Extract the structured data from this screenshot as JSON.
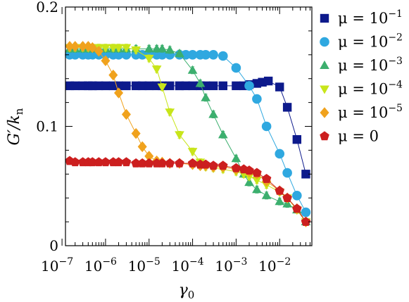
{
  "chart_data": {
    "type": "scatter",
    "title": "",
    "xlabel": "γ0",
    "ylabel": "G′/kn",
    "xscale": "log",
    "xlim": [
      1.2e-07,
      0.055
    ],
    "ylim": [
      0,
      0.2
    ],
    "x_ticks": [
      {
        "value": 1e-07,
        "base": "10",
        "exp": "−7"
      },
      {
        "value": 1e-06,
        "base": "10",
        "exp": "−6"
      },
      {
        "value": 1e-05,
        "base": "10",
        "exp": "−5"
      },
      {
        "value": 0.0001,
        "base": "10",
        "exp": "−4"
      },
      {
        "value": 0.001,
        "base": "10",
        "exp": "−3"
      },
      {
        "value": 0.01,
        "base": "10",
        "exp": "−2"
      }
    ],
    "y_ticks": [
      {
        "value": 0,
        "label": "0"
      },
      {
        "value": 0.1,
        "label": "0.1"
      },
      {
        "value": 0.2,
        "label": "0.2"
      }
    ],
    "legend_position": "right",
    "series": [
      {
        "name": "μ = 10−1",
        "mu_base": "μ = 10",
        "mu_exp": "−1",
        "color": "#0d1a8c",
        "marker": "square",
        "points": [
          [
            1.5e-07,
            0.134
          ],
          [
            2e-07,
            0.134
          ],
          [
            3e-07,
            0.134
          ],
          [
            4e-07,
            0.134
          ],
          [
            5e-07,
            0.134
          ],
          [
            7e-07,
            0.134
          ],
          [
            1e-06,
            0.134
          ],
          [
            1.5e-06,
            0.134
          ],
          [
            2e-06,
            0.134
          ],
          [
            3e-06,
            0.134
          ],
          [
            5e-06,
            0.134
          ],
          [
            7e-06,
            0.134
          ],
          [
            1e-05,
            0.134
          ],
          [
            1.5e-05,
            0.134
          ],
          [
            2e-05,
            0.134
          ],
          [
            3e-05,
            0.134
          ],
          [
            5e-05,
            0.134
          ],
          [
            7e-05,
            0.134
          ],
          [
            0.0001,
            0.134
          ],
          [
            0.00015,
            0.134
          ],
          [
            0.0002,
            0.134
          ],
          [
            0.0003,
            0.134
          ],
          [
            0.0005,
            0.134
          ],
          [
            0.001,
            0.134
          ],
          [
            0.0015,
            0.134
          ],
          [
            0.002,
            0.135
          ],
          [
            0.003,
            0.136
          ],
          [
            0.004,
            0.137
          ],
          [
            0.0055,
            0.138
          ],
          [
            0.01,
            0.133
          ],
          [
            0.015,
            0.116
          ],
          [
            0.025,
            0.089
          ],
          [
            0.04,
            0.06
          ]
        ]
      },
      {
        "name": "μ = 10−2",
        "mu_base": "μ = 10",
        "mu_exp": "−2",
        "color": "#2fa8e0",
        "marker": "circle",
        "points": [
          [
            1.5e-07,
            0.16
          ],
          [
            2e-07,
            0.16
          ],
          [
            3e-07,
            0.16
          ],
          [
            4e-07,
            0.16
          ],
          [
            5e-07,
            0.16
          ],
          [
            7e-07,
            0.16
          ],
          [
            1e-06,
            0.16
          ],
          [
            1.5e-06,
            0.16
          ],
          [
            2e-06,
            0.16
          ],
          [
            3e-06,
            0.16
          ],
          [
            5e-06,
            0.16
          ],
          [
            7e-06,
            0.16
          ],
          [
            1e-05,
            0.16
          ],
          [
            1.5e-05,
            0.16
          ],
          [
            2e-05,
            0.16
          ],
          [
            3e-05,
            0.16
          ],
          [
            5e-05,
            0.16
          ],
          [
            7e-05,
            0.16
          ],
          [
            0.0001,
            0.16
          ],
          [
            0.00015,
            0.16
          ],
          [
            0.0002,
            0.16
          ],
          [
            0.0003,
            0.16
          ],
          [
            0.0005,
            0.159
          ],
          [
            0.001,
            0.149
          ],
          [
            0.002,
            0.134
          ],
          [
            0.003,
            0.123
          ],
          [
            0.005,
            0.1
          ],
          [
            0.01,
            0.077
          ],
          [
            0.015,
            0.061
          ],
          [
            0.025,
            0.042
          ],
          [
            0.04,
            0.028
          ]
        ]
      },
      {
        "name": "μ = 10−3",
        "mu_base": "μ = 10",
        "mu_exp": "−3",
        "color": "#3caf6e",
        "marker": "triangle-up",
        "points": [
          [
            1.5e-07,
            0.165
          ],
          [
            2e-07,
            0.165
          ],
          [
            3e-07,
            0.165
          ],
          [
            4e-07,
            0.165
          ],
          [
            5e-07,
            0.165
          ],
          [
            7e-07,
            0.165
          ],
          [
            1e-06,
            0.165
          ],
          [
            1.5e-06,
            0.165
          ],
          [
            2e-06,
            0.165
          ],
          [
            3e-06,
            0.165
          ],
          [
            5e-06,
            0.165
          ],
          [
            1e-05,
            0.165
          ],
          [
            1.5e-05,
            0.165
          ],
          [
            2e-05,
            0.165
          ],
          [
            3e-05,
            0.164
          ],
          [
            5e-05,
            0.161
          ],
          [
            0.0001,
            0.147
          ],
          [
            0.00015,
            0.136
          ],
          [
            0.0002,
            0.124
          ],
          [
            0.0003,
            0.11
          ],
          [
            0.0005,
            0.093
          ],
          [
            0.001,
            0.073
          ],
          [
            0.0015,
            0.06
          ],
          [
            0.002,
            0.053
          ],
          [
            0.003,
            0.047
          ],
          [
            0.005,
            0.042
          ],
          [
            0.01,
            0.037
          ],
          [
            0.015,
            0.035
          ],
          [
            0.025,
            0.03
          ],
          [
            0.04,
            0.02
          ]
        ]
      },
      {
        "name": "μ = 10−4",
        "mu_base": "μ = 10",
        "mu_exp": "−4",
        "color": "#c8e51a",
        "marker": "triangle-down",
        "points": [
          [
            1.5e-07,
            0.166
          ],
          [
            2e-07,
            0.166
          ],
          [
            3e-07,
            0.166
          ],
          [
            4e-07,
            0.166
          ],
          [
            5e-07,
            0.166
          ],
          [
            7e-07,
            0.166
          ],
          [
            1e-06,
            0.166
          ],
          [
            1.5e-06,
            0.166
          ],
          [
            2e-06,
            0.166
          ],
          [
            3e-06,
            0.166
          ],
          [
            5e-06,
            0.164
          ],
          [
            1e-05,
            0.157
          ],
          [
            1.5e-05,
            0.148
          ],
          [
            2e-05,
            0.133
          ],
          [
            3e-05,
            0.112
          ],
          [
            5e-05,
            0.093
          ],
          [
            0.0001,
            0.079
          ],
          [
            0.00015,
            0.07
          ],
          [
            0.0002,
            0.066
          ],
          [
            0.0003,
            0.065
          ],
          [
            0.0005,
            0.064
          ],
          [
            0.001,
            0.062
          ],
          [
            0.0015,
            0.06
          ],
          [
            0.002,
            0.058
          ],
          [
            0.003,
            0.055
          ],
          [
            0.005,
            0.051
          ],
          [
            0.01,
            0.045
          ],
          [
            0.015,
            0.04
          ],
          [
            0.025,
            0.03
          ],
          [
            0.04,
            0.02
          ]
        ]
      },
      {
        "name": "μ = 10−5",
        "mu_base": "μ = 10",
        "mu_exp": "−5",
        "color": "#f0a21d",
        "marker": "diamond",
        "points": [
          [
            1.5e-07,
            0.167
          ],
          [
            2e-07,
            0.167
          ],
          [
            3e-07,
            0.167
          ],
          [
            4e-07,
            0.167
          ],
          [
            5e-07,
            0.166
          ],
          [
            7e-07,
            0.163
          ],
          [
            1e-06,
            0.155
          ],
          [
            1.5e-06,
            0.143
          ],
          [
            2e-06,
            0.128
          ],
          [
            3e-06,
            0.11
          ],
          [
            5e-06,
            0.094
          ],
          [
            7e-06,
            0.083
          ],
          [
            1e-05,
            0.075
          ],
          [
            1.5e-05,
            0.071
          ],
          [
            2e-05,
            0.07
          ],
          [
            3e-05,
            0.069
          ],
          [
            5e-05,
            0.069
          ],
          [
            0.0001,
            0.068
          ],
          [
            0.00015,
            0.067
          ],
          [
            0.0002,
            0.067
          ],
          [
            0.0003,
            0.066
          ],
          [
            0.0005,
            0.066
          ],
          [
            0.001,
            0.064
          ],
          [
            0.002,
            0.062
          ],
          [
            0.003,
            0.06
          ],
          [
            0.005,
            0.054
          ],
          [
            0.01,
            0.046
          ],
          [
            0.015,
            0.04
          ],
          [
            0.025,
            0.031
          ],
          [
            0.04,
            0.02
          ]
        ]
      },
      {
        "name": "μ = 0",
        "mu_base": "μ = 0",
        "mu_exp": "",
        "color": "#cc1f1f",
        "marker": "pentagon",
        "points": [
          [
            1.5e-07,
            0.071
          ],
          [
            2e-07,
            0.07
          ],
          [
            3e-07,
            0.07
          ],
          [
            4e-07,
            0.07
          ],
          [
            5e-07,
            0.07
          ],
          [
            7e-07,
            0.07
          ],
          [
            1e-06,
            0.07
          ],
          [
            1.5e-06,
            0.07
          ],
          [
            2e-06,
            0.07
          ],
          [
            3e-06,
            0.07
          ],
          [
            5e-06,
            0.069
          ],
          [
            7e-06,
            0.069
          ],
          [
            1e-05,
            0.069
          ],
          [
            1.5e-05,
            0.069
          ],
          [
            2e-05,
            0.069
          ],
          [
            3e-05,
            0.069
          ],
          [
            5e-05,
            0.069
          ],
          [
            0.0001,
            0.069
          ],
          [
            0.00015,
            0.068
          ],
          [
            0.0002,
            0.068
          ],
          [
            0.0003,
            0.067
          ],
          [
            0.0005,
            0.067
          ],
          [
            0.001,
            0.065
          ],
          [
            0.0015,
            0.064
          ],
          [
            0.002,
            0.063
          ],
          [
            0.003,
            0.061
          ],
          [
            0.005,
            0.056
          ],
          [
            0.01,
            0.046
          ],
          [
            0.015,
            0.04
          ],
          [
            0.025,
            0.031
          ],
          [
            0.04,
            0.02
          ]
        ]
      }
    ]
  }
}
